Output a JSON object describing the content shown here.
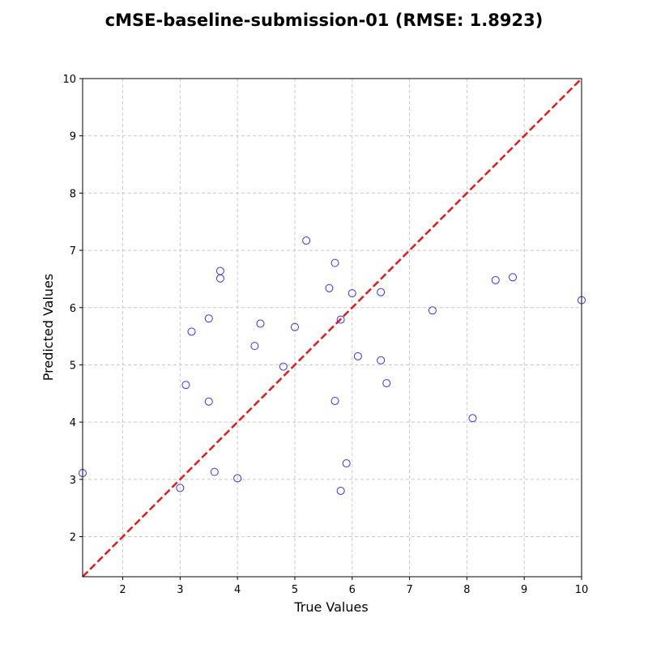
{
  "chart_data": {
    "type": "scatter",
    "title": "cMSE-baseline-submission-01 (RMSE: 1.8923)",
    "xlabel": "True Values",
    "ylabel": "Predicted Values",
    "xlim": [
      1.3,
      10
    ],
    "ylim": [
      1.3,
      10
    ],
    "xticks": [
      "2",
      "3",
      "4",
      "5",
      "6",
      "7",
      "8",
      "9",
      "10"
    ],
    "yticks": [
      "2",
      "3",
      "4",
      "5",
      "6",
      "7",
      "8",
      "9",
      "10"
    ],
    "grid": true,
    "reference_line": {
      "x": [
        1.3,
        10
      ],
      "y": [
        1.3,
        10
      ],
      "style": "dashed",
      "color": "#e41a1c"
    },
    "marker_color": "#3333ee",
    "points": [
      {
        "x": 1.3,
        "y": 3.11
      },
      {
        "x": 3.0,
        "y": 2.85
      },
      {
        "x": 3.1,
        "y": 4.65
      },
      {
        "x": 3.2,
        "y": 5.58
      },
      {
        "x": 3.5,
        "y": 5.81
      },
      {
        "x": 3.5,
        "y": 4.36
      },
      {
        "x": 3.6,
        "y": 3.13
      },
      {
        "x": 3.7,
        "y": 6.64
      },
      {
        "x": 3.7,
        "y": 6.51
      },
      {
        "x": 4.0,
        "y": 3.02
      },
      {
        "x": 4.3,
        "y": 5.33
      },
      {
        "x": 4.4,
        "y": 5.72
      },
      {
        "x": 4.8,
        "y": 4.97
      },
      {
        "x": 5.0,
        "y": 5.66
      },
      {
        "x": 5.2,
        "y": 7.17
      },
      {
        "x": 5.6,
        "y": 6.34
      },
      {
        "x": 5.7,
        "y": 6.78
      },
      {
        "x": 5.7,
        "y": 4.37
      },
      {
        "x": 5.8,
        "y": 5.79
      },
      {
        "x": 5.8,
        "y": 2.8
      },
      {
        "x": 5.9,
        "y": 3.28
      },
      {
        "x": 6.0,
        "y": 6.25
      },
      {
        "x": 6.1,
        "y": 5.15
      },
      {
        "x": 6.5,
        "y": 6.27
      },
      {
        "x": 6.5,
        "y": 5.08
      },
      {
        "x": 6.6,
        "y": 4.68
      },
      {
        "x": 7.4,
        "y": 5.95
      },
      {
        "x": 8.1,
        "y": 4.07
      },
      {
        "x": 8.5,
        "y": 6.48
      },
      {
        "x": 8.8,
        "y": 6.53
      },
      {
        "x": 10.0,
        "y": 6.13
      }
    ]
  }
}
